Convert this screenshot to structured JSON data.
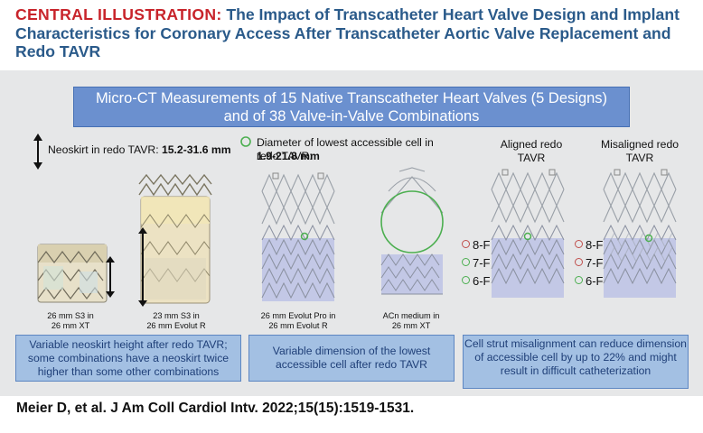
{
  "header": {
    "lead": "CENTRAL ILLUSTRATION:",
    "text": "The Impact of Transcatheter Heart Valve Design and Implant Characteristics for Coronary Access After Transcatheter Aortic Valve Replacement and Redo TAVR"
  },
  "banner": {
    "line1": "Micro-CT Measurements of 15 Native Transcatheter Heart Valves (5 Designs)",
    "line2": "and of 38 Valve-in-Valve Combinations"
  },
  "neoskirt": {
    "label": "Neoskirt in redo TAVR:",
    "range": "15.2-31.6 mm",
    "valve1_caption": [
      "26 mm S3 in",
      "26 mm XT"
    ],
    "valve2_caption": [
      "23 mm S3 in",
      "26 mm Evolut R"
    ],
    "note": "Variable neoskirt height after redo TAVR; some combinations have a neoskirt twice higher than some other combinations"
  },
  "cell": {
    "label": "Diameter of lowest accessible cell in redo TAVR:",
    "range": "1.9-21.8 mm",
    "valve1_caption": [
      "26 mm Evolut Pro in",
      "26 mm Evolut R"
    ],
    "valve2_caption": [
      "ACn medium in",
      "26 mm XT"
    ],
    "note": "Variable dimension of the lowest accessible cell after redo TAVR"
  },
  "alignment": {
    "aligned_label": [
      "Aligned redo",
      "TAVR"
    ],
    "misaligned_label": [
      "Misaligned redo",
      "TAVR"
    ],
    "catheters": [
      "8-F",
      "7-F",
      "6-F"
    ],
    "aligned_status": [
      "red",
      "green",
      "green"
    ],
    "misaligned_status": [
      "red",
      "red",
      "green"
    ],
    "note": "Cell strut misalignment can reduce dimension of accessible cell by up to 22% and might result in difficult catheterization"
  },
  "citation": "Meier D, et al. J Am Coll Cardiol Intv. 2022;15(15):1519-1531.",
  "colors": {
    "red": "#c0504d",
    "green": "#4caf50",
    "title_red": "#c8242b",
    "title_blue": "#2a5a8a"
  }
}
